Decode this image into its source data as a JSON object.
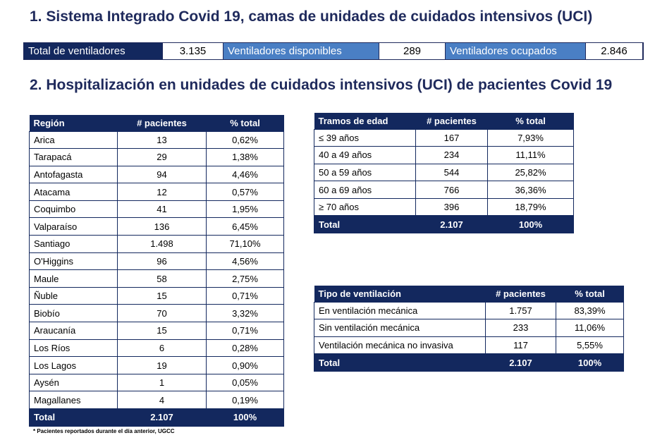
{
  "section1_title": "1. Sistema Integrado Covid 19, camas de unidades de cuidados intensivos (UCI)",
  "ventilators": {
    "total_label": "Total de ventiladores",
    "total_value": "3.135",
    "available_label": "Ventiladores disponibles",
    "available_value": "289",
    "occupied_label": "Ventiladores ocupados",
    "occupied_value": "2.846"
  },
  "section2_title": "2. Hospitalización en unidades de cuidados intensivos (UCI) de pacientes Covid 19",
  "region_table": {
    "headers": [
      "Región",
      "# pacientes",
      "% total"
    ],
    "rows": [
      [
        "Arica",
        "13",
        "0,62%"
      ],
      [
        "Tarapacá",
        "29",
        "1,38%"
      ],
      [
        "Antofagasta",
        "94",
        "4,46%"
      ],
      [
        "Atacama",
        "12",
        "0,57%"
      ],
      [
        "Coquimbo",
        "41",
        "1,95%"
      ],
      [
        "Valparaíso",
        "136",
        "6,45%"
      ],
      [
        "Santiago",
        "1.498",
        "71,10%"
      ],
      [
        "O'Higgins",
        "96",
        "4,56%"
      ],
      [
        "Maule",
        "58",
        "2,75%"
      ],
      [
        "Ñuble",
        "15",
        "0,71%"
      ],
      [
        "Biobío",
        "70",
        "3,32%"
      ],
      [
        "Araucanía",
        "15",
        "0,71%"
      ],
      [
        "Los Ríos",
        "6",
        "0,28%"
      ],
      [
        "Los Lagos",
        "19",
        "0,90%"
      ],
      [
        "Aysén",
        "1",
        "0,05%"
      ],
      [
        "Magallanes",
        "4",
        "0,19%"
      ]
    ],
    "total": [
      "Total",
      "2.107",
      "100%"
    ]
  },
  "age_table": {
    "headers": [
      "Tramos de edad",
      "# pacientes",
      "% total"
    ],
    "rows": [
      [
        "≤ 39 años",
        "167",
        "7,93%"
      ],
      [
        "40 a 49 años",
        "234",
        "11,11%"
      ],
      [
        "50 a 59 años",
        "544",
        "25,82%"
      ],
      [
        "60 a 69 años",
        "766",
        "36,36%"
      ],
      [
        "≥ 70 años",
        "396",
        "18,79%"
      ]
    ],
    "total": [
      "Total",
      "2.107",
      "100%"
    ]
  },
  "ventilation_table": {
    "headers": [
      "Tipo de ventilación",
      "# pacientes",
      "% total"
    ],
    "rows": [
      [
        "En ventilación mecánica",
        "1.757",
        "83,39%"
      ],
      [
        "Sin ventilación mecánica",
        "233",
        "11,06%"
      ],
      [
        "Ventilación mecánica no invasiva",
        "117",
        "5,55%"
      ]
    ],
    "total": [
      "Total",
      "2.107",
      "100%"
    ]
  },
  "footnote": "* Pacientes reportados durante el día anterior, UGCC"
}
